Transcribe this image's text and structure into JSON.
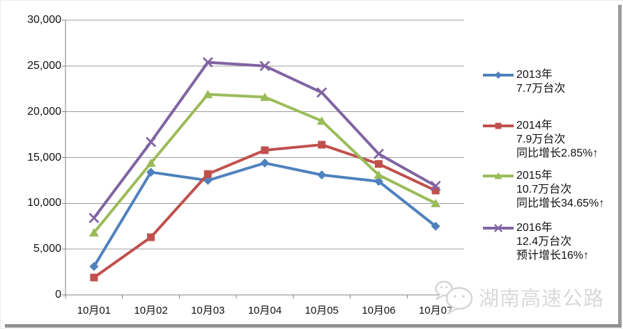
{
  "chart_data": {
    "type": "line",
    "title": "",
    "xlabel": "",
    "ylabel": "",
    "categories": [
      "10月01",
      "10月02",
      "10月03",
      "10月04",
      "10月05",
      "10月06",
      "10月07"
    ],
    "series": [
      {
        "name": "2013年",
        "legend_lines": [
          "2013年",
          "7.7万台次"
        ],
        "color": "#4F81BD",
        "marker": "diamond",
        "values": [
          3100,
          13400,
          12500,
          14400,
          13100,
          12400,
          7500
        ]
      },
      {
        "name": "2014年",
        "legend_lines": [
          "2014年",
          "7.9万台次",
          "同比增长2.85%↑"
        ],
        "color": "#C0504D",
        "marker": "square",
        "values": [
          1900,
          6300,
          13200,
          15800,
          16400,
          14300,
          11400
        ]
      },
      {
        "name": "2015年",
        "legend_lines": [
          "2015年",
          "10.7万台次",
          "同比增长34.65%↑"
        ],
        "color": "#9BBB59",
        "marker": "triangle",
        "values": [
          6800,
          14400,
          21900,
          21600,
          19000,
          13100,
          10000
        ]
      },
      {
        "name": "2016年",
        "legend_lines": [
          "2016年",
          "12.4万台次",
          "预计增长16%↑"
        ],
        "color": "#8064A2",
        "marker": "x",
        "values": [
          8400,
          16700,
          25400,
          25000,
          22100,
          15400,
          11900
        ]
      }
    ],
    "ylim": [
      0,
      30000
    ],
    "ytick_interval": 5000,
    "ytick_labels": [
      "0",
      "5,000",
      "10,000",
      "15,000",
      "20,000",
      "25,000",
      "30,000"
    ],
    "grid": true,
    "legend_position": "right"
  },
  "watermark": {
    "text": "湖南高速公路",
    "icon": "wechat-logo-icon"
  },
  "colors": {
    "grid": "#9c9c9c",
    "axis": "#808080",
    "label_text": "#111111",
    "watermark": "#d9d9d9",
    "watermark_icon": "#d4d4d4",
    "background": "#ffffff"
  }
}
